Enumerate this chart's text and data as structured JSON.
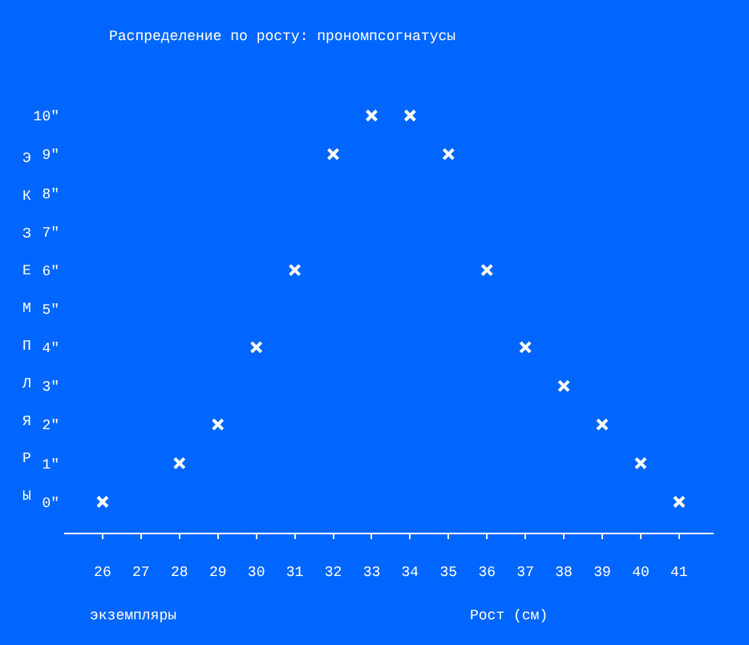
{
  "chart_data": {
    "type": "scatter",
    "title": "Распределение по росту: прономпсогнатусы",
    "xlabel": "Рост (см)",
    "ylabel": "ЭКЗЕМПЛЯРЫ",
    "annotations": [
      "экземпляры"
    ],
    "x": [
      26,
      28,
      29,
      30,
      31,
      32,
      33,
      34,
      35,
      36,
      37,
      38,
      39,
      40,
      41
    ],
    "series": [
      {
        "color": "#ffffff",
        "values": [
          0,
          1,
          2,
          4,
          6,
          9,
          10,
          10,
          9,
          6,
          4,
          3,
          2,
          1,
          0
        ]
      }
    ],
    "xlim": [
      25,
      41.9
    ],
    "xticks": [
      26,
      27,
      28,
      29,
      30,
      31,
      32,
      33,
      34,
      35,
      36,
      37,
      38,
      39,
      40,
      41
    ],
    "ylim": [
      -0.8,
      10
    ],
    "yticks": [
      {
        "value": 0,
        "label": "0\""
      },
      {
        "value": 1,
        "label": "1\""
      },
      {
        "value": 2,
        "label": "2\""
      },
      {
        "value": 3,
        "label": "3\""
      },
      {
        "value": 4,
        "label": "4\""
      },
      {
        "value": 5,
        "label": "5\""
      },
      {
        "value": 6,
        "label": "6\""
      },
      {
        "value": 7,
        "label": "7\""
      },
      {
        "value": 8,
        "label": "8\""
      },
      {
        "value": 9,
        "label": "9\""
      },
      {
        "value": 10,
        "label": "10\""
      }
    ],
    "grid": false,
    "legend": false,
    "marker": "cross"
  }
}
